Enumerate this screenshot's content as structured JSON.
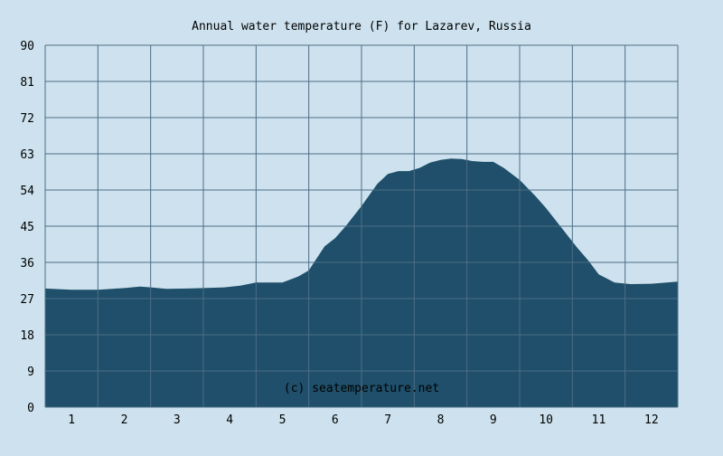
{
  "colors": {
    "background": "#cde2ee",
    "plot_background": "#cde2ee",
    "area_fill": "#1f4f6a",
    "grid": "#4e6d86",
    "text": "#000000",
    "watermark": "#ffffff"
  },
  "chart_data": {
    "type": "area",
    "title": "Annual water temperature (F) for Lazarev, Russia",
    "xlabel": "",
    "ylabel": "",
    "xlim": [
      0.5,
      12.5
    ],
    "ylim": [
      0,
      90
    ],
    "yticks": [
      0,
      9,
      18,
      27,
      36,
      45,
      54,
      63,
      72,
      81,
      90
    ],
    "xticks": [
      1,
      2,
      3,
      4,
      5,
      6,
      7,
      8,
      9,
      10,
      11,
      12
    ],
    "x_tick_labels": [
      "1",
      "2",
      "3",
      "4",
      "5",
      "6",
      "7",
      "8",
      "9",
      "10",
      "11",
      "12"
    ],
    "y_tick_labels": [
      "0",
      "9",
      "18",
      "27",
      "36",
      "45",
      "54",
      "63",
      "72",
      "81",
      "90"
    ],
    "grid": true,
    "annotation": "(c) seatemperature.net",
    "series": [
      {
        "x": [
          0.5,
          1.0,
          1.5,
          2.0,
          2.3,
          2.5,
          2.8,
          3.2,
          3.5,
          3.9,
          4.2,
          4.5,
          4.8,
          5.0,
          5.3,
          5.5,
          5.6,
          5.8,
          6.0,
          6.2,
          6.5,
          6.8,
          7.0,
          7.2,
          7.4,
          7.6,
          7.8,
          8.0,
          8.2,
          8.4,
          8.6,
          8.8,
          9.0,
          9.2,
          9.5,
          9.8,
          10.0,
          10.3,
          10.6,
          10.8,
          11.0,
          11.3,
          11.6,
          12.0,
          12.5
        ],
        "values": [
          29.5,
          29.2,
          29.2,
          29.6,
          30.0,
          29.8,
          29.4,
          29.5,
          29.6,
          29.8,
          30.2,
          31.0,
          31.0,
          31.0,
          32.5,
          34.0,
          36.0,
          40.0,
          42.0,
          45.0,
          50.0,
          55.5,
          58.0,
          58.7,
          58.7,
          59.5,
          60.8,
          61.5,
          61.8,
          61.7,
          61.2,
          61.0,
          61.0,
          59.5,
          56.5,
          52.5,
          49.5,
          44.5,
          39.5,
          36.5,
          33.0,
          31.0,
          30.6,
          30.7,
          31.2
        ]
      }
    ]
  }
}
